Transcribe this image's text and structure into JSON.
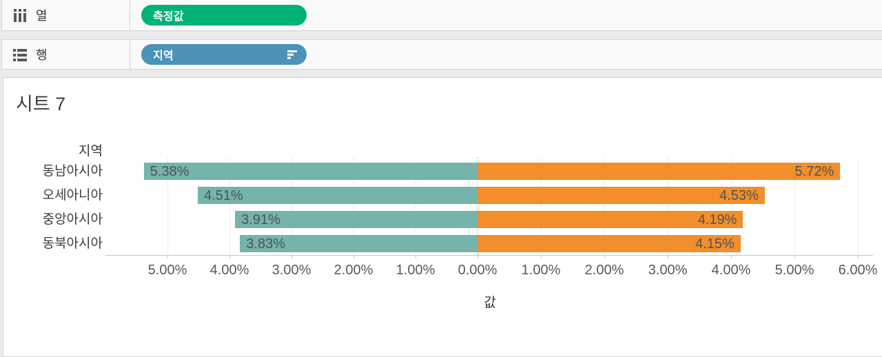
{
  "shelves": {
    "columns": {
      "label": "열",
      "pill": {
        "label": "측정값",
        "color": "#00b274"
      }
    },
    "rows": {
      "label": "행",
      "pill": {
        "label": "지역",
        "color": "#4b93b7",
        "sort_icon": "sort-descending"
      }
    }
  },
  "sheet": {
    "title": "시트 7"
  },
  "chart_data": {
    "type": "bar",
    "orientation": "diverging-horizontal",
    "title": "시트 7",
    "row_header": "지역",
    "categories": [
      "동남아시아",
      "오세아니아",
      "중앙아시아",
      "동북아시아"
    ],
    "series": [
      {
        "name": "left-measure",
        "direction": "left",
        "color": "#74b4ab",
        "values": [
          5.38,
          4.51,
          3.91,
          3.83
        ],
        "labels": [
          "5.38%",
          "4.51%",
          "3.91%",
          "3.83%"
        ]
      },
      {
        "name": "right-measure",
        "direction": "right",
        "color": "#f28e2b",
        "values": [
          5.72,
          4.53,
          4.19,
          4.15
        ],
        "labels": [
          "5.72%",
          "4.53%",
          "4.19%",
          "4.15%"
        ]
      }
    ],
    "left_axis": {
      "ticks": [
        5,
        4,
        3,
        2,
        1,
        0
      ],
      "tick_labels": [
        "5.00%",
        "4.00%",
        "3.00%",
        "2.00%",
        "1.00%",
        "0.00%"
      ],
      "max": 6.0
    },
    "right_axis": {
      "ticks": [
        1,
        2,
        3,
        4,
        5,
        6
      ],
      "tick_labels": [
        "1.00%",
        "2.00%",
        "3.00%",
        "4.00%",
        "5.00%",
        "6.00%"
      ],
      "max": 7.0
    },
    "xlabel": "값",
    "grid": true,
    "zero_line": "dashed"
  }
}
